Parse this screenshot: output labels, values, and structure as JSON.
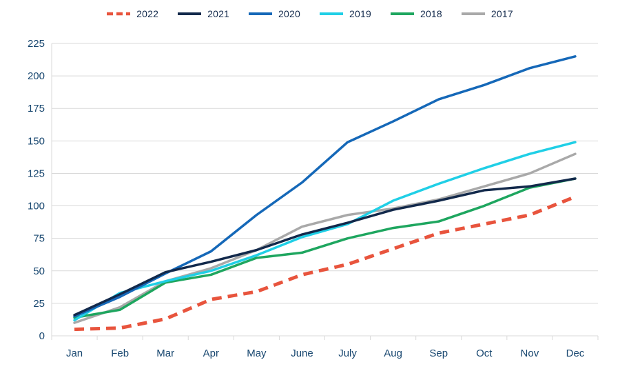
{
  "chart_data": {
    "type": "line",
    "title": "",
    "categories": [
      "Jan",
      "Feb",
      "Mar",
      "Apr",
      "May",
      "June",
      "July",
      "Aug",
      "Sep",
      "Oct",
      "Nov",
      "Dec"
    ],
    "ylim": [
      0,
      225
    ],
    "ytick_step": 25,
    "grid": true,
    "legend_position": "top",
    "colors": {
      "grid": "#d9d9d9",
      "axis_label": "#17466f",
      "legend_label": "#12294b"
    },
    "series": [
      {
        "name": "2022",
        "color": "#e8543d",
        "dashed": true,
        "width": 5,
        "values": [
          5,
          6,
          13,
          28,
          34,
          47,
          55,
          67,
          79,
          86,
          93,
          107
        ]
      },
      {
        "name": "2021",
        "color": "#12294b",
        "dashed": false,
        "width": 3.5,
        "values": [
          16,
          32,
          49,
          57,
          66,
          78,
          87,
          97,
          104,
          112,
          115,
          121
        ]
      },
      {
        "name": "2020",
        "color": "#1568b8",
        "dashed": false,
        "width": 3.5,
        "values": [
          15,
          30,
          48,
          65,
          93,
          118,
          149,
          165,
          182,
          193,
          206,
          215
        ]
      },
      {
        "name": "2019",
        "color": "#20cfe6",
        "dashed": false,
        "width": 3.5,
        "values": [
          12,
          33,
          42,
          50,
          62,
          76,
          86,
          104,
          117,
          129,
          140,
          149
        ]
      },
      {
        "name": "2018",
        "color": "#1ea65f",
        "dashed": false,
        "width": 3.5,
        "values": [
          14,
          20,
          41,
          47,
          60,
          64,
          75,
          83,
          88,
          100,
          114,
          121
        ]
      },
      {
        "name": "2017",
        "color": "#a9a9a9",
        "dashed": false,
        "width": 3.5,
        "values": [
          10,
          22,
          42,
          52,
          66,
          84,
          93,
          98,
          105,
          115,
          125,
          140
        ]
      }
    ]
  }
}
